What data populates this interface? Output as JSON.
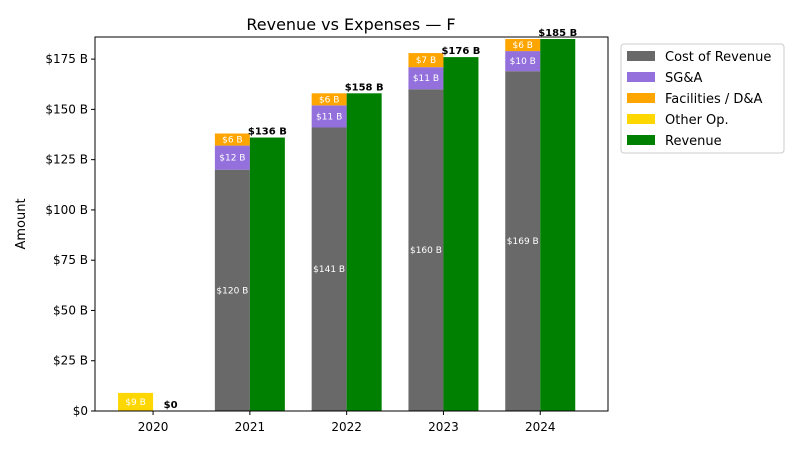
{
  "chart_data": {
    "type": "bar",
    "title": "Revenue vs Expenses — F",
    "xlabel": "",
    "ylabel": "Amount",
    "categories": [
      "2020",
      "2021",
      "2022",
      "2023",
      "2024"
    ],
    "ylim": [
      0,
      186
    ],
    "yticks": [
      0,
      25,
      50,
      75,
      100,
      125,
      150,
      175
    ],
    "ytick_labels": [
      "$0",
      "$25 B",
      "$50 B",
      "$75 B",
      "$100 B",
      "$125 B",
      "$150 B",
      "$175 B"
    ],
    "expense_series": [
      {
        "name": "Cost of Revenue",
        "color": "#696969",
        "values": [
          0,
          120,
          141,
          160,
          169
        ],
        "labels": [
          "",
          "$120 B",
          "$141 B",
          "$160 B",
          "$169 B"
        ]
      },
      {
        "name": "SG&A",
        "color": "#9370db",
        "values": [
          0,
          12,
          11,
          11,
          10
        ],
        "labels": [
          "",
          "$12 B",
          "$11 B",
          "$11 B",
          "$10 B"
        ]
      },
      {
        "name": "Facilities / D&A",
        "color": "#ffa500",
        "values": [
          0,
          6,
          6,
          7,
          6
        ],
        "labels": [
          "",
          "$6 B",
          "$6 B",
          "$7 B",
          "$6 B"
        ]
      },
      {
        "name": "Other Op.",
        "color": "#ffd700",
        "values": [
          9,
          0,
          0,
          0,
          0
        ],
        "labels": [
          "$9 B",
          "",
          "",
          "",
          ""
        ]
      }
    ],
    "revenue_series": {
      "name": "Revenue",
      "color": "#008000",
      "values": [
        0,
        136,
        158,
        176,
        185
      ],
      "labels": [
        "$0",
        "$136 B",
        "$158 B",
        "$176 B",
        "$185 B"
      ]
    },
    "legend": {
      "position": "outside-top-right",
      "order": [
        "Cost of Revenue",
        "SG&A",
        "Facilities / D&A",
        "Other Op.",
        "Revenue"
      ]
    },
    "grid": false
  }
}
